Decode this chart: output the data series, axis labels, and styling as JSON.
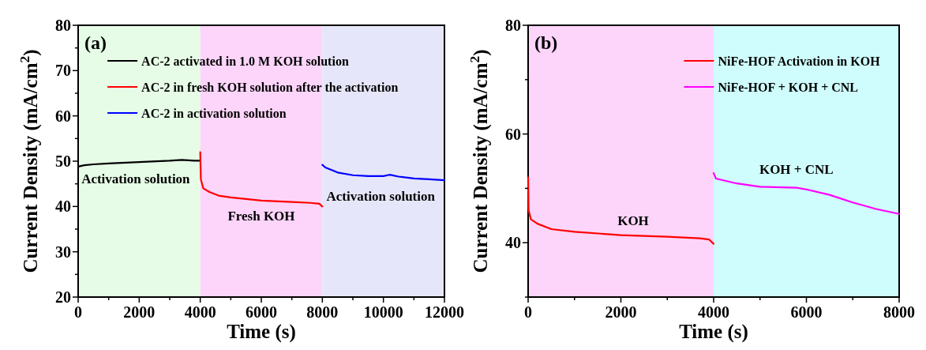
{
  "chart_data": [
    {
      "type": "line",
      "annotations": [
        "(a)",
        "Activation solution",
        "Fresh KOH",
        "Activation solution"
      ],
      "xlabel": "Time (s)",
      "ylabel": "Current Density (mA/cm$^{2}$)",
      "xlim": [
        0,
        12000
      ],
      "ylim": [
        20,
        80
      ],
      "xticks": [
        0,
        {
          "value": 1000,
          "label": null
        },
        2000,
        {
          "value": 3000,
          "label": null
        },
        4000,
        {
          "value": 5000,
          "label": null
        },
        6000,
        {
          "value": 7000,
          "label": null
        },
        8000,
        {
          "value": 9000,
          "label": null
        },
        10000,
        {
          "value": 11000,
          "label": null
        },
        12000
      ],
      "yticks": [
        20,
        {
          "value": 25,
          "label": null
        },
        30,
        {
          "value": 35,
          "label": null
        },
        40,
        {
          "value": 45,
          "label": null
        },
        50,
        {
          "value": 55,
          "label": null
        },
        60,
        {
          "value": 65,
          "label": null
        },
        70,
        {
          "value": 75,
          "label": null
        },
        80
      ],
      "bands": [
        {
          "axis": "x",
          "from": 0,
          "to": 4000,
          "color": "#e6fce6"
        },
        {
          "axis": "x",
          "from": 4000,
          "to": 8000,
          "color": "#fdd5fb"
        },
        {
          "axis": "x",
          "from": 8000,
          "to": 12000,
          "color": "#e6e6fa"
        }
      ],
      "legend": "top left",
      "series": [
        {
          "name": "AC-2 activated in 1.0 M KOH solution",
          "color": "#000000",
          "x": [
            0,
            200,
            500,
            1000,
            2000,
            3000,
            3400,
            3800,
            4000
          ],
          "values": [
            48.8,
            49.1,
            49.3,
            49.5,
            49.8,
            50.1,
            50.3,
            50.1,
            50.1
          ]
        },
        {
          "name": "AC-2 in  fresh KOH solution after the activation",
          "color": "#ff0000",
          "x": [
            4000,
            4020,
            4100,
            4300,
            4600,
            5000,
            6000,
            7000,
            7600,
            7900,
            8000
          ],
          "values": [
            52,
            46,
            44,
            43.2,
            42.4,
            42,
            41.3,
            41,
            40.8,
            40.6,
            40
          ]
        },
        {
          "name": "AC-2 in activation solution",
          "color": "#0000ff",
          "x": [
            8000,
            8100,
            8500,
            9000,
            9500,
            10000,
            10200,
            10500,
            11000,
            11500,
            12000
          ],
          "values": [
            49.2,
            48.6,
            47.5,
            46.9,
            46.7,
            46.7,
            47,
            46.6,
            46.2,
            46,
            45.8
          ]
        }
      ]
    },
    {
      "type": "line",
      "annotations": [
        "(b)",
        "KOH",
        "KOH + CNL"
      ],
      "xlabel": "Time (s)",
      "ylabel": "Current Density (mA/cm$^{2}$)",
      "xlim": [
        0,
        8000
      ],
      "ylim": [
        30,
        80
      ],
      "xticks": [
        0,
        {
          "value": 1000,
          "label": null
        },
        2000,
        {
          "value": 3000,
          "label": null
        },
        4000,
        {
          "value": 5000,
          "label": null
        },
        6000,
        {
          "value": 7000,
          "label": null
        },
        8000
      ],
      "yticks": [
        {
          "value": 30,
          "label": null
        },
        40,
        {
          "value": 50,
          "label": null
        },
        60,
        {
          "value": 70,
          "label": null
        },
        80
      ],
      "bands": [
        {
          "axis": "x",
          "from": 0,
          "to": 4000,
          "color": "#fdd5fb"
        },
        {
          "axis": "x",
          "from": 4000,
          "to": 8000,
          "color": "#cffcfc"
        }
      ],
      "legend": "top right",
      "series": [
        {
          "name": "NiFe-HOF Activation in  KOH",
          "color": "#ff0000",
          "x": [
            0,
            10,
            60,
            200,
            500,
            1000,
            2000,
            3000,
            3700,
            3900,
            4000
          ],
          "values": [
            52,
            46,
            44.3,
            43.5,
            42.5,
            42,
            41.4,
            41.1,
            40.8,
            40.6,
            39.8
          ]
        },
        {
          "name": "NiFe-HOF + KOH + CNL",
          "color": "#ff00ff",
          "x": [
            4000,
            4050,
            4500,
            5000,
            5800,
            6000,
            6500,
            7000,
            7500,
            8000
          ],
          "values": [
            52.8,
            51.8,
            50.9,
            50.3,
            50.1,
            49.8,
            48.8,
            47.4,
            46.2,
            45.3
          ]
        }
      ]
    }
  ]
}
